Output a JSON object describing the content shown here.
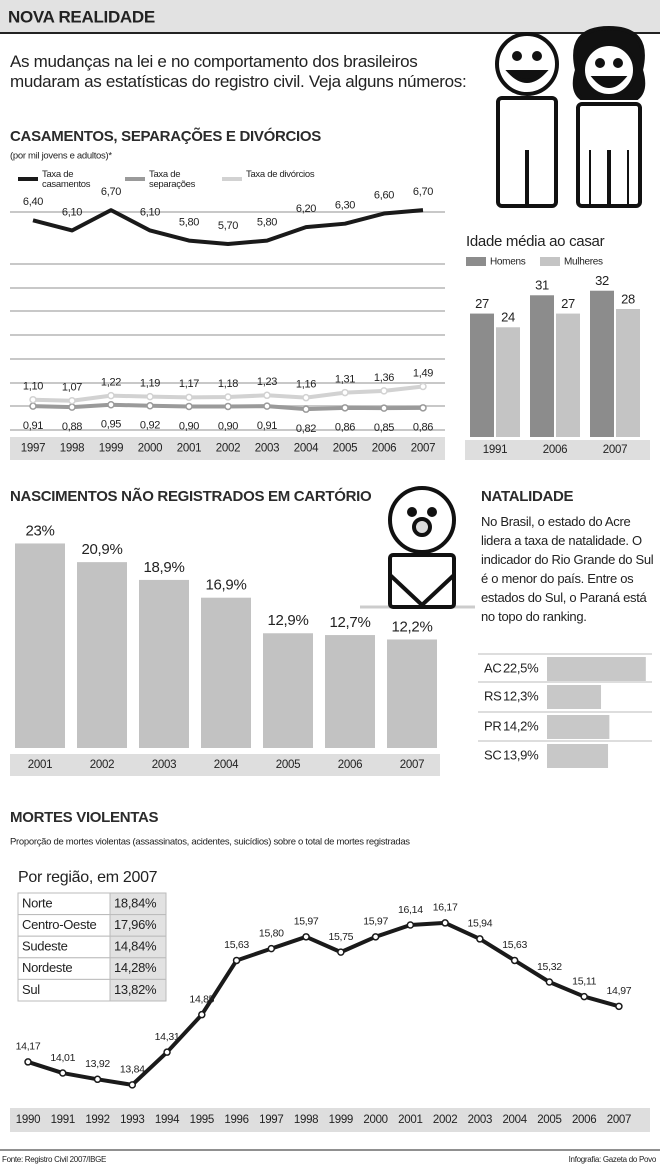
{
  "header": {
    "title": "NOVA REALIDADE",
    "intro": "As mudanças na lei e no comportamento dos brasileiros mudaram as estatísticas do registro civil. Veja alguns números:"
  },
  "chart_data": [
    {
      "type": "line",
      "title": "CASAMENTOS, SEPARAÇÕES E DIVÓRCIOS",
      "subtitle": "(por mil jovens e adultos)*",
      "categories": [
        "1997",
        "1998",
        "1999",
        "2000",
        "2001",
        "2002",
        "2003",
        "2004",
        "2005",
        "2006",
        "2007"
      ],
      "ylim": [
        0.5,
        7
      ],
      "series": [
        {
          "name": "Taxa de casamentos",
          "color": "#1a1a1a",
          "values": [
            6.4,
            6.1,
            6.7,
            6.1,
            5.8,
            5.7,
            5.8,
            6.2,
            6.3,
            6.6,
            6.7
          ],
          "value_labels": [
            "6,40",
            "6,10",
            "6,70",
            "6,10",
            "5,80",
            "5,70",
            "5,80",
            "6,20",
            "6,30",
            "6,60",
            "6,70"
          ]
        },
        {
          "name": "Taxa de separações",
          "color": "#9a9a9a",
          "values": [
            0.91,
            0.88,
            0.95,
            0.92,
            0.9,
            0.9,
            0.91,
            0.82,
            0.86,
            0.85,
            0.86
          ],
          "value_labels": [
            "0,91",
            "0,88",
            "0,95",
            "0,92",
            "0,90",
            "0,90",
            "0,91",
            "0,82",
            "0,86",
            "0,85",
            "0,86"
          ]
        },
        {
          "name": "Taxa de divórcios",
          "color": "#d2d2d2",
          "values": [
            1.1,
            1.07,
            1.22,
            1.19,
            1.17,
            1.18,
            1.23,
            1.16,
            1.31,
            1.36,
            1.49
          ],
          "value_labels": [
            "1,10",
            "1,07",
            "1,22",
            "1,19",
            "1,17",
            "1,18",
            "1,23",
            "1,16",
            "1,31",
            "1,36",
            "1,49"
          ]
        }
      ]
    },
    {
      "type": "bar",
      "title": "Idade média ao casar",
      "categories": [
        "1991",
        "2006",
        "2007"
      ],
      "ylim": [
        0,
        35
      ],
      "series": [
        {
          "name": "Homens",
          "color": "#8c8c8c",
          "values": [
            27,
            31,
            32
          ]
        },
        {
          "name": "Mulheres",
          "color": "#c4c4c4",
          "values": [
            24,
            27,
            28
          ]
        }
      ]
    },
    {
      "type": "bar",
      "title": "NASCIMENTOS NÃO REGISTRADOS EM CARTÓRIO",
      "categories": [
        "2001",
        "2002",
        "2003",
        "2004",
        "2005",
        "2006",
        "2007"
      ],
      "values": [
        23,
        20.9,
        18.9,
        16.9,
        12.9,
        12.7,
        12.2
      ],
      "value_labels": [
        "23%",
        "20,9%",
        "18,9%",
        "16,9%",
        "12,9%",
        "12,7%",
        "12,2%"
      ],
      "color": "#c2c2c2",
      "ylim": [
        0,
        23.5
      ]
    },
    {
      "type": "hbar",
      "title": "NATALIDADE",
      "text": "No Brasil, o estado do Acre lidera a taxa de natalidade. O indicador do Rio Grande do Sul é o menor do país. Entre os estados do Sul, o Paraná está no topo do ranking.",
      "categories": [
        "AC",
        "RS",
        "PR",
        "SC"
      ],
      "values": [
        22.5,
        12.3,
        14.2,
        13.9
      ],
      "value_labels": [
        "22,5%",
        "12,3%",
        "14,2%",
        "13,9%"
      ],
      "color": "#c8c8c8",
      "xlim": [
        0,
        23
      ]
    },
    {
      "type": "line",
      "title": "MORTES VIOLENTAS",
      "subtitle": "Proporção de mortes violentas (assassinatos, acidentes, suicídios) sobre o total de mortes registradas",
      "categories": [
        "1990",
        "1991",
        "1992",
        "1993",
        "1994",
        "1995",
        "1996",
        "1997",
        "1998",
        "1999",
        "2000",
        "2001",
        "2002",
        "2003",
        "2004",
        "2005",
        "2006",
        "2007"
      ],
      "ylim": [
        13.55,
        16.5
      ],
      "series": [
        {
          "color": "#1a1a1a",
          "values": [
            14.17,
            14.01,
            13.92,
            13.84,
            14.31,
            14.85,
            15.63,
            15.8,
            15.97,
            15.75,
            15.97,
            16.14,
            16.17,
            15.94,
            15.63,
            15.32,
            15.11,
            14.97
          ],
          "value_labels": [
            "14,17",
            "14,01",
            "13,92",
            "13,84",
            "14,31",
            "14,85",
            "15,63",
            "15,80",
            "15,97",
            "15,75",
            "15,97",
            "16,14",
            "16,17",
            "15,94",
            "15,63",
            "15,32",
            "15,11",
            "14,97"
          ]
        }
      ]
    }
  ],
  "regional_table": {
    "title": "Por região, em 2007",
    "rows": [
      [
        "Norte",
        "18,84%"
      ],
      [
        "Centro-Oeste",
        "17,96%"
      ],
      [
        "Sudeste",
        "14,84%"
      ],
      [
        "Nordeste",
        "14,28%"
      ],
      [
        "Sul",
        "13,82%"
      ]
    ]
  },
  "footer": {
    "source": "Fonte: Registro Civil 2007/IBGE",
    "credit": "Infografia: Gazeta do Povo"
  }
}
